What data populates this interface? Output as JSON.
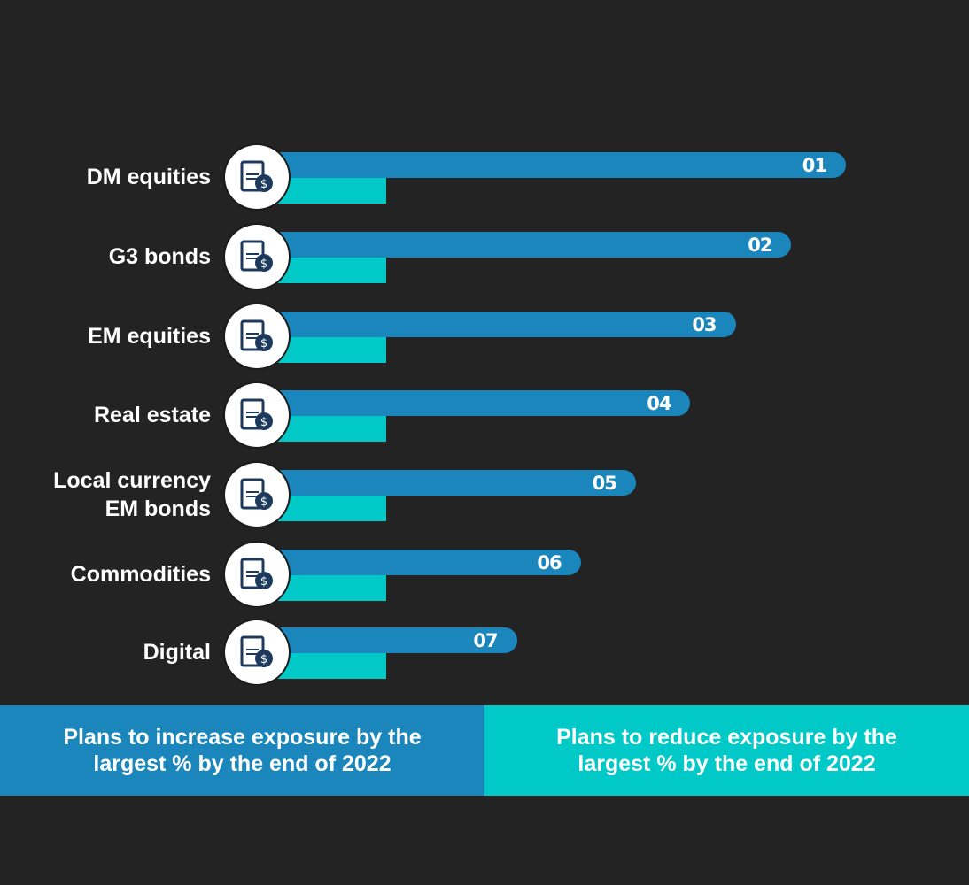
{
  "chart_data": {
    "type": "bar",
    "categories": [
      "DM equities",
      "G3 bonds",
      "EM equities",
      "Real estate",
      "Local currency EM bonds",
      "Commodities",
      "Digital"
    ],
    "label_lines": [
      [
        "DM equities"
      ],
      [
        "G3 bonds"
      ],
      [
        "EM equities"
      ],
      [
        "Real estate"
      ],
      [
        "Local currency",
        "EM bonds"
      ],
      [
        "Commodities"
      ],
      [
        "Digital"
      ]
    ],
    "ranks": [
      "01",
      "02",
      "03",
      "04",
      "05",
      "06",
      "07"
    ],
    "series": [
      {
        "name": "Plans to increase exposure by the largest % by the end of 2022",
        "color": "#1a86bb",
        "relative_values": [
          100,
          90.6,
          81,
          73.2,
          63.8,
          54.3,
          43.3
        ]
      },
      {
        "name": "Plans to reduce exposure by the largest % by the end of 2022",
        "color": "#00c9c8",
        "relative_values": [
          20.8,
          20.8,
          20.8,
          20.8,
          20.8,
          20.8,
          20.8
        ]
      }
    ],
    "icons": [
      "certificate-money-bag-icon",
      "bond-certificate-icon",
      "stock-certificate-icon",
      "real-estate-icon",
      "currency-growth-icon",
      "commodities-icon",
      "digital-pie-chart-icon"
    ],
    "legend": {
      "increase": [
        "Plans to increase exposure by the",
        "largest % by the end of 2022"
      ],
      "reduce": [
        "Plans to reduce exposure by the",
        "largest % by the end of 2022"
      ]
    }
  }
}
